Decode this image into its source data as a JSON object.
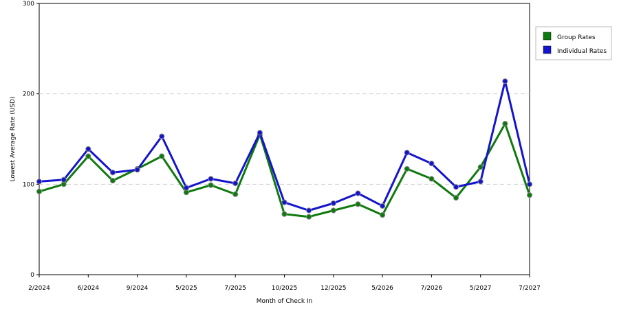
{
  "chart_data": {
    "type": "line",
    "title": "",
    "xlabel": "Month of Check In",
    "ylabel": "Lowest Average Rate (USD)",
    "ylim": [
      0,
      300
    ],
    "yticks": [
      0,
      100,
      200,
      300
    ],
    "grid": "horizontal dashed at 100 and 200",
    "legend_position": "top-right",
    "x_tick_labels": [
      "2/2024",
      "6/2024",
      "9/2024",
      "5/2025",
      "7/2025",
      "10/2025",
      "12/2025",
      "5/2026",
      "7/2026",
      "5/2027",
      "7/2027"
    ],
    "series": [
      {
        "name": "Group Rates",
        "color": "#0e7a0e",
        "values": [
          92,
          100,
          131,
          104,
          117,
          131,
          91,
          99,
          89,
          155,
          67,
          64,
          71,
          78,
          66,
          117,
          106,
          85,
          119,
          167,
          88
        ]
      },
      {
        "name": "Individual Rates",
        "color": "#1414cc",
        "values": [
          103,
          105,
          139,
          113,
          116,
          153,
          96,
          106,
          101,
          157,
          80,
          71,
          79,
          90,
          76,
          135,
          123,
          97,
          103,
          214,
          100
        ]
      }
    ]
  }
}
